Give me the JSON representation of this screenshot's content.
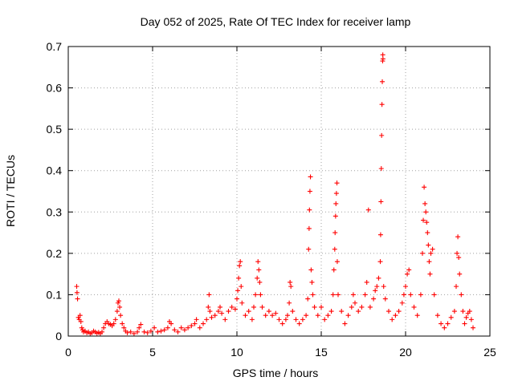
{
  "chart_data": {
    "type": "scatter",
    "title": "Day 052 of 2025, Rate Of TEC Index for receiver lamp",
    "xlabel": "GPS time / hours",
    "ylabel": "ROTI / TECUs",
    "xlim": [
      0,
      25
    ],
    "ylim": [
      0,
      0.7
    ],
    "x_ticks": [
      "0",
      "5",
      "10",
      "15",
      "20",
      "25"
    ],
    "y_ticks": [
      "0",
      "0.1",
      "0.2",
      "0.3",
      "0.4",
      "0.5",
      "0.6",
      "0.7"
    ],
    "grid": true,
    "legend": "none",
    "marker": "plus",
    "color": "#ff0000",
    "series": [
      {
        "points": [
          [
            0.5,
            0.12
          ],
          [
            0.52,
            0.105
          ],
          [
            0.55,
            0.09
          ],
          [
            0.6,
            0.045
          ],
          [
            0.65,
            0.04
          ],
          [
            0.7,
            0.05
          ],
          [
            0.75,
            0.035
          ],
          [
            0.8,
            0.02
          ],
          [
            0.85,
            0.015
          ],
          [
            0.9,
            0.01
          ],
          [
            1.0,
            0.012
          ],
          [
            1.1,
            0.008
          ],
          [
            1.2,
            0.01
          ],
          [
            1.3,
            0.006
          ],
          [
            1.4,
            0.008
          ],
          [
            1.5,
            0.012
          ],
          [
            1.6,
            0.01
          ],
          [
            1.7,
            0.007
          ],
          [
            1.8,
            0.009
          ],
          [
            1.9,
            0.006
          ],
          [
            2.0,
            0.01
          ],
          [
            2.1,
            0.02
          ],
          [
            2.2,
            0.03
          ],
          [
            2.3,
            0.035
          ],
          [
            2.4,
            0.03
          ],
          [
            2.5,
            0.028
          ],
          [
            2.6,
            0.025
          ],
          [
            2.7,
            0.03
          ],
          [
            2.8,
            0.04
          ],
          [
            2.9,
            0.06
          ],
          [
            2.95,
            0.08
          ],
          [
            3.0,
            0.085
          ],
          [
            3.05,
            0.07
          ],
          [
            3.1,
            0.05
          ],
          [
            3.2,
            0.03
          ],
          [
            3.3,
            0.02
          ],
          [
            3.4,
            0.012
          ],
          [
            3.5,
            0.008
          ],
          [
            3.7,
            0.01
          ],
          [
            3.9,
            0.006
          ],
          [
            4.1,
            0.01
          ],
          [
            4.2,
            0.02
          ],
          [
            4.3,
            0.028
          ],
          [
            4.5,
            0.01
          ],
          [
            4.7,
            0.008
          ],
          [
            4.9,
            0.012
          ],
          [
            5.1,
            0.02
          ],
          [
            5.3,
            0.01
          ],
          [
            5.5,
            0.012
          ],
          [
            5.7,
            0.015
          ],
          [
            5.9,
            0.02
          ],
          [
            6.0,
            0.035
          ],
          [
            6.1,
            0.03
          ],
          [
            6.3,
            0.015
          ],
          [
            6.5,
            0.01
          ],
          [
            6.7,
            0.02
          ],
          [
            6.9,
            0.015
          ],
          [
            7.1,
            0.02
          ],
          [
            7.3,
            0.025
          ],
          [
            7.5,
            0.03
          ],
          [
            7.6,
            0.04
          ],
          [
            7.8,
            0.02
          ],
          [
            8.0,
            0.03
          ],
          [
            8.2,
            0.04
          ],
          [
            8.3,
            0.07
          ],
          [
            8.35,
            0.1
          ],
          [
            8.4,
            0.06
          ],
          [
            8.5,
            0.045
          ],
          [
            8.7,
            0.05
          ],
          [
            8.9,
            0.06
          ],
          [
            9.0,
            0.07
          ],
          [
            9.1,
            0.055
          ],
          [
            9.3,
            0.04
          ],
          [
            9.5,
            0.06
          ],
          [
            9.7,
            0.07
          ],
          [
            9.9,
            0.065
          ],
          [
            10.0,
            0.09
          ],
          [
            10.05,
            0.11
          ],
          [
            10.1,
            0.14
          ],
          [
            10.15,
            0.17
          ],
          [
            10.2,
            0.18
          ],
          [
            10.25,
            0.12
          ],
          [
            10.3,
            0.08
          ],
          [
            10.5,
            0.05
          ],
          [
            10.7,
            0.06
          ],
          [
            10.9,
            0.04
          ],
          [
            11.0,
            0.07
          ],
          [
            11.1,
            0.1
          ],
          [
            11.2,
            0.14
          ],
          [
            11.25,
            0.18
          ],
          [
            11.3,
            0.16
          ],
          [
            11.35,
            0.13
          ],
          [
            11.4,
            0.1
          ],
          [
            11.5,
            0.07
          ],
          [
            11.7,
            0.05
          ],
          [
            11.9,
            0.06
          ],
          [
            12.1,
            0.05
          ],
          [
            12.3,
            0.055
          ],
          [
            12.5,
            0.04
          ],
          [
            12.7,
            0.03
          ],
          [
            12.9,
            0.04
          ],
          [
            13.0,
            0.05
          ],
          [
            13.1,
            0.08
          ],
          [
            13.15,
            0.13
          ],
          [
            13.2,
            0.12
          ],
          [
            13.3,
            0.06
          ],
          [
            13.5,
            0.04
          ],
          [
            13.7,
            0.03
          ],
          [
            13.9,
            0.04
          ],
          [
            14.1,
            0.05
          ],
          [
            14.2,
            0.09
          ],
          [
            14.25,
            0.21
          ],
          [
            14.28,
            0.26
          ],
          [
            14.3,
            0.305
          ],
          [
            14.33,
            0.35
          ],
          [
            14.36,
            0.385
          ],
          [
            14.4,
            0.16
          ],
          [
            14.45,
            0.13
          ],
          [
            14.5,
            0.1
          ],
          [
            14.6,
            0.07
          ],
          [
            14.8,
            0.05
          ],
          [
            15.0,
            0.07
          ],
          [
            15.2,
            0.04
          ],
          [
            15.4,
            0.05
          ],
          [
            15.6,
            0.06
          ],
          [
            15.7,
            0.1
          ],
          [
            15.75,
            0.16
          ],
          [
            15.8,
            0.21
          ],
          [
            15.82,
            0.25
          ],
          [
            15.85,
            0.29
          ],
          [
            15.87,
            0.32
          ],
          [
            15.9,
            0.345
          ],
          [
            15.93,
            0.37
          ],
          [
            15.95,
            0.18
          ],
          [
            16.0,
            0.1
          ],
          [
            16.2,
            0.06
          ],
          [
            16.4,
            0.03
          ],
          [
            16.6,
            0.05
          ],
          [
            16.8,
            0.07
          ],
          [
            16.9,
            0.1
          ],
          [
            17.0,
            0.08
          ],
          [
            17.2,
            0.06
          ],
          [
            17.4,
            0.07
          ],
          [
            17.6,
            0.1
          ],
          [
            17.7,
            0.13
          ],
          [
            17.8,
            0.305
          ],
          [
            17.9,
            0.07
          ],
          [
            18.1,
            0.09
          ],
          [
            18.2,
            0.11
          ],
          [
            18.3,
            0.12
          ],
          [
            18.4,
            0.14
          ],
          [
            18.5,
            0.18
          ],
          [
            18.52,
            0.245
          ],
          [
            18.54,
            0.325
          ],
          [
            18.56,
            0.405
          ],
          [
            18.58,
            0.485
          ],
          [
            18.6,
            0.56
          ],
          [
            18.62,
            0.615
          ],
          [
            18.64,
            0.665
          ],
          [
            18.65,
            0.68
          ],
          [
            18.66,
            0.67
          ],
          [
            18.7,
            0.12
          ],
          [
            18.8,
            0.09
          ],
          [
            19.0,
            0.06
          ],
          [
            19.2,
            0.04
          ],
          [
            19.4,
            0.05
          ],
          [
            19.6,
            0.06
          ],
          [
            19.8,
            0.08
          ],
          [
            19.9,
            0.1
          ],
          [
            20.0,
            0.12
          ],
          [
            20.1,
            0.15
          ],
          [
            20.2,
            0.16
          ],
          [
            20.3,
            0.1
          ],
          [
            20.5,
            0.07
          ],
          [
            20.7,
            0.05
          ],
          [
            20.9,
            0.1
          ],
          [
            21.0,
            0.2
          ],
          [
            21.05,
            0.28
          ],
          [
            21.1,
            0.36
          ],
          [
            21.15,
            0.32
          ],
          [
            21.2,
            0.3
          ],
          [
            21.25,
            0.275
          ],
          [
            21.3,
            0.25
          ],
          [
            21.35,
            0.22
          ],
          [
            21.4,
            0.18
          ],
          [
            21.45,
            0.15
          ],
          [
            21.5,
            0.2
          ],
          [
            21.6,
            0.21
          ],
          [
            21.7,
            0.1
          ],
          [
            21.9,
            0.05
          ],
          [
            22.1,
            0.03
          ],
          [
            22.3,
            0.02
          ],
          [
            22.5,
            0.03
          ],
          [
            22.7,
            0.045
          ],
          [
            22.9,
            0.06
          ],
          [
            23.0,
            0.12
          ],
          [
            23.05,
            0.2
          ],
          [
            23.1,
            0.24
          ],
          [
            23.15,
            0.19
          ],
          [
            23.2,
            0.15
          ],
          [
            23.3,
            0.1
          ],
          [
            23.4,
            0.06
          ],
          [
            23.5,
            0.03
          ],
          [
            23.6,
            0.045
          ],
          [
            23.7,
            0.055
          ],
          [
            23.8,
            0.06
          ],
          [
            23.9,
            0.04
          ],
          [
            24.0,
            0.02
          ]
        ]
      }
    ]
  }
}
